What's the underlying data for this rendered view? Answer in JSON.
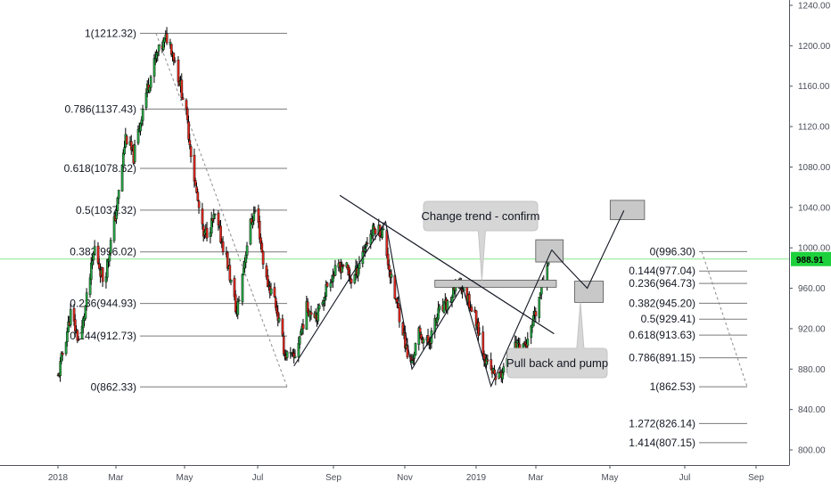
{
  "chart_data": {
    "type": "candlestick",
    "colors": {
      "up": "#26a643",
      "down": "#e0281e",
      "wick": "#000000",
      "current_price_line": "#8be88b",
      "current_price_badge": "#1ed13c",
      "box": "#c8c8c8"
    },
    "y_axis": {
      "ticks": [
        "800.00",
        "840.00",
        "880.00",
        "920.00",
        "960.00",
        "1000.00",
        "1040.00",
        "1080.00",
        "1120.00",
        "1160.00",
        "1200.00",
        "1240.00"
      ],
      "range": [
        780,
        1250
      ]
    },
    "x_axis": {
      "ticks": [
        "2018",
        "Mar",
        "May",
        "Jul",
        "Sep",
        "Nov",
        "2019",
        "Mar",
        "May",
        "Jul",
        "Sep"
      ]
    },
    "current_price": "988.91",
    "fib_retracement_1": [
      {
        "label": "1(1212.32)",
        "price": 1212.32
      },
      {
        "label": "0.786(1137.43)",
        "price": 1137.43
      },
      {
        "label": "0.618(1078.62)",
        "price": 1078.62
      },
      {
        "label": "0.5(1037.32)",
        "price": 1037.32
      },
      {
        "label": "0.382(996.02)",
        "price": 996.02
      },
      {
        "label": "0.236(944.93)",
        "price": 944.93
      },
      {
        "label": "0.144(912.73)",
        "price": 912.73
      },
      {
        "label": "0(862.33)",
        "price": 862.33
      }
    ],
    "fib_retracement_2": [
      {
        "label": "0(996.30)",
        "price": 996.3
      },
      {
        "label": "0.144(977.04)",
        "price": 977.04
      },
      {
        "label": "0.236(964.73)",
        "price": 964.73
      },
      {
        "label": "0.382(945.20)",
        "price": 945.2
      },
      {
        "label": "0.5(929.41)",
        "price": 929.41
      },
      {
        "label": "0.618(913.63)",
        "price": 913.63
      },
      {
        "label": "0.786(891.15)",
        "price": 891.15
      },
      {
        "label": "1(862.53)",
        "price": 862.53
      },
      {
        "label": "1.272(826.14)",
        "price": 826.14
      },
      {
        "label": "1.414(807.15)",
        "price": 807.15
      }
    ],
    "price_path": [
      [
        "2018-01-01",
        872
      ],
      [
        "2018-01-12",
        935
      ],
      [
        "2018-01-20",
        905
      ],
      [
        "2018-02-02",
        1000
      ],
      [
        "2018-02-10",
        965
      ],
      [
        "2018-02-22",
        1045
      ],
      [
        "2018-03-01",
        1110
      ],
      [
        "2018-03-08",
        1090
      ],
      [
        "2018-03-18",
        1150
      ],
      [
        "2018-03-28",
        1190
      ],
      [
        "2018-04-07",
        1210
      ],
      [
        "2018-04-12",
        1190
      ],
      [
        "2018-04-22",
        1140
      ],
      [
        "2018-05-01",
        1060
      ],
      [
        "2018-05-08",
        1010
      ],
      [
        "2018-05-18",
        1030
      ],
      [
        "2018-05-28",
        990
      ],
      [
        "2018-06-06",
        935
      ],
      [
        "2018-06-17",
        1020
      ],
      [
        "2018-06-23",
        1040
      ],
      [
        "2018-07-01",
        970
      ],
      [
        "2018-07-09",
        950
      ],
      [
        "2018-07-18",
        895
      ],
      [
        "2018-07-26",
        890
      ],
      [
        "2018-08-06",
        940
      ],
      [
        "2018-08-16",
        935
      ],
      [
        "2018-08-26",
        970
      ],
      [
        "2018-09-08",
        985
      ],
      [
        "2018-09-15",
        965
      ],
      [
        "2018-09-22",
        990
      ],
      [
        "2018-09-29",
        1010
      ],
      [
        "2018-10-05",
        1020
      ],
      [
        "2018-10-12",
        1015
      ],
      [
        "2018-10-20",
        960
      ],
      [
        "2018-10-28",
        925
      ],
      [
        "2018-11-04",
        880
      ],
      [
        "2018-11-12",
        915
      ],
      [
        "2018-11-20",
        905
      ],
      [
        "2018-11-29",
        935
      ],
      [
        "2018-12-08",
        945
      ],
      [
        "2018-12-17",
        965
      ],
      [
        "2018-12-25",
        950
      ],
      [
        "2019-01-02",
        925
      ],
      [
        "2019-01-10",
        885
      ],
      [
        "2019-01-20",
        870
      ],
      [
        "2019-01-28",
        885
      ],
      [
        "2019-02-06",
        905
      ],
      [
        "2019-02-15",
        905
      ],
      [
        "2019-02-22",
        935
      ],
      [
        "2019-03-02",
        975
      ],
      [
        "2019-03-06",
        996
      ]
    ],
    "trend_line_down": [
      [
        "2018-10-12",
        1024
      ],
      [
        "2019-03-10",
        915
      ]
    ],
    "trend_line_long": [
      [
        "2018-09-04",
        1052
      ],
      [
        "2018-10-12",
        1024
      ]
    ],
    "zigzag_1": [
      [
        "2018-07-26",
        883
      ],
      [
        "2018-10-14",
        1026
      ],
      [
        "2018-11-06",
        880
      ],
      [
        "2018-12-20",
        962
      ],
      [
        "2019-01-14",
        863
      ],
      [
        "2019-03-08",
        998
      ]
    ],
    "projection": [
      [
        "2019-03-08",
        998
      ],
      [
        "2019-03-18",
        985
      ],
      [
        "2019-04-08",
        960
      ],
      [
        "2019-05-10",
        1037
      ]
    ],
    "boxes": [
      {
        "x": [
          "2018-11-26",
          "2019-03-12"
        ],
        "y": [
          968,
          961
        ]
      },
      {
        "x": [
          "2019-02-22",
          "2019-03-18"
        ],
        "y": [
          1008,
          986
        ]
      },
      {
        "x": [
          "2019-03-28",
          "2019-04-22"
        ],
        "y": [
          967,
          946
        ]
      },
      {
        "x": [
          "2019-04-28",
          "2019-05-28"
        ],
        "y": [
          1047,
          1028
        ]
      }
    ],
    "callouts": [
      {
        "text": "Change trend - confirm",
        "pointer": [
          "2019-01-06",
          968
        ]
      },
      {
        "text": "Pull back and pump",
        "pointer": [
          "2019-04-02",
          946
        ]
      }
    ]
  }
}
